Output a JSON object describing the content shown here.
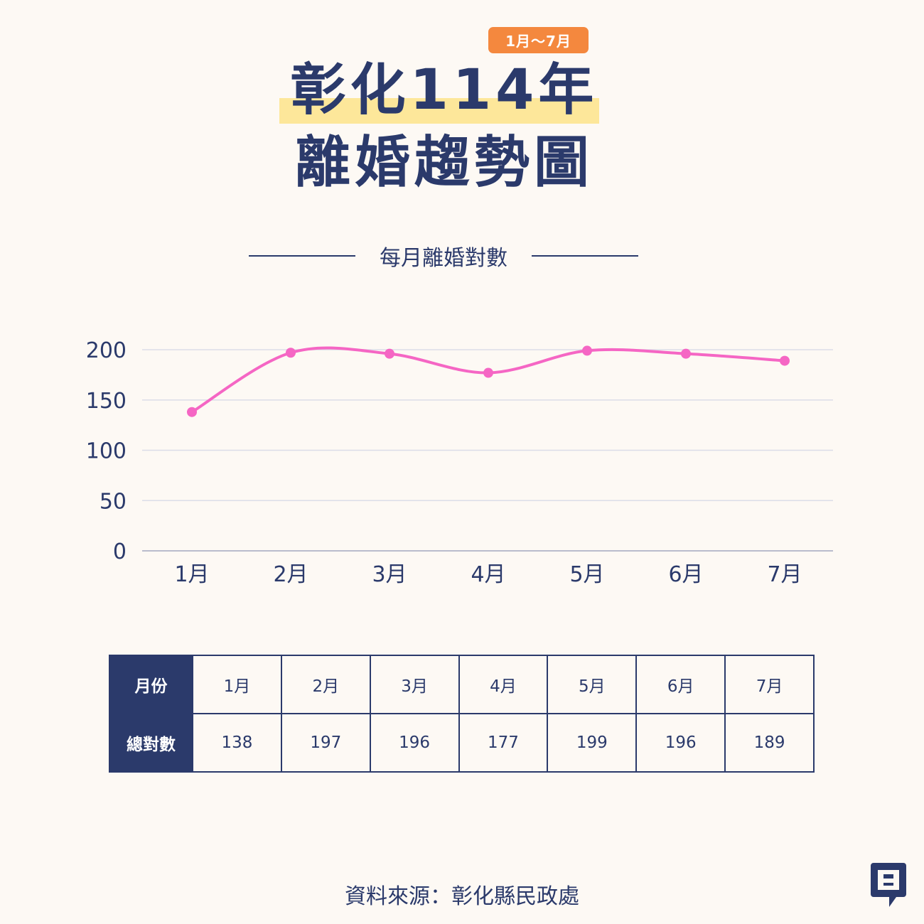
{
  "header": {
    "badge": "1月～7月",
    "title_line1": "彰化114年",
    "title_line2": "離婚趨勢圖"
  },
  "chart_data": {
    "type": "line",
    "title": "每月離婚對數",
    "categories": [
      "1月",
      "2月",
      "3月",
      "4月",
      "5月",
      "6月",
      "7月"
    ],
    "values": [
      138,
      197,
      196,
      177,
      199,
      196,
      189
    ],
    "ylim": [
      0,
      200
    ],
    "yticks": [
      0,
      50,
      100,
      150,
      200
    ],
    "grid": true,
    "line_color": "#f566c4"
  },
  "table": {
    "row1_header": "月份",
    "row2_header": "總對數",
    "months": [
      "1月",
      "2月",
      "3月",
      "4月",
      "5月",
      "6月",
      "7月"
    ],
    "totals": [
      "138",
      "197",
      "196",
      "177",
      "199",
      "196",
      "189"
    ]
  },
  "footer": {
    "source": "資料來源：彰化縣民政處",
    "logo_icon": "brand-logo-icon"
  },
  "colors": {
    "navy": "#2b3a6b",
    "accent_orange": "#f4883e",
    "highlight_yellow": "#fde79a",
    "line_pink": "#f566c4",
    "background": "#fdf9f4"
  }
}
